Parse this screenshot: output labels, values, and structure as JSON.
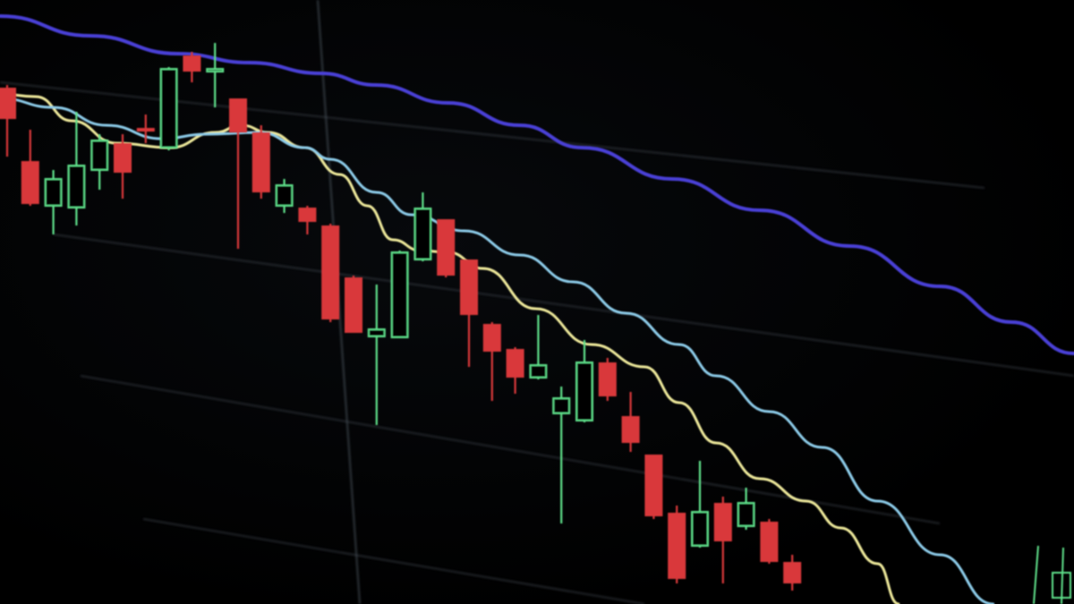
{
  "chart_data": {
    "type": "candlestick",
    "title": "",
    "xlabel": "",
    "ylabel": "",
    "grid": true,
    "legend": "none",
    "colors": {
      "up": "#5fe08a",
      "down": "#d9373a",
      "ma_fast": "#ece79a",
      "ma_mid": "#8ccbe8",
      "ma_slow": "#4a3fd6",
      "grid": "#3a4148",
      "background": "#000000"
    },
    "candles": [
      {
        "o": 60.2,
        "h": 60.5,
        "l": 52.5,
        "c": 56.7
      },
      {
        "o": 52.0,
        "h": 55.5,
        "l": 47.0,
        "c": 47.2
      },
      {
        "o": 47.0,
        "h": 51.0,
        "l": 43.8,
        "c": 50.0
      },
      {
        "o": 46.8,
        "h": 57.5,
        "l": 44.8,
        "c": 51.5
      },
      {
        "o": 51.0,
        "h": 55.0,
        "l": 48.8,
        "c": 54.3
      },
      {
        "o": 54.0,
        "h": 55.0,
        "l": 47.8,
        "c": 50.7
      },
      {
        "o": 55.7,
        "h": 57.2,
        "l": 54.0,
        "c": 55.3
      },
      {
        "o": 53.5,
        "h": 62.5,
        "l": 53.2,
        "c": 62.3
      },
      {
        "o": 63.8,
        "h": 64.2,
        "l": 60.8,
        "c": 62.0
      },
      {
        "o": 62.0,
        "h": 65.2,
        "l": 58.0,
        "c": 62.3
      },
      {
        "o": 59.0,
        "h": 59.0,
        "l": 42.2,
        "c": 55.2
      },
      {
        "o": 55.2,
        "h": 56.0,
        "l": 47.8,
        "c": 48.5
      },
      {
        "o": 47.0,
        "h": 50.0,
        "l": 46.2,
        "c": 49.3
      },
      {
        "o": 46.8,
        "h": 47.0,
        "l": 43.8,
        "c": 45.2
      },
      {
        "o": 44.8,
        "h": 45.0,
        "l": 34.0,
        "c": 34.3
      },
      {
        "o": 39.0,
        "h": 39.2,
        "l": 32.8,
        "c": 32.8
      },
      {
        "o": 32.4,
        "h": 38.2,
        "l": 22.5,
        "c": 33.2
      },
      {
        "o": 32.3,
        "h": 42.0,
        "l": 32.2,
        "c": 41.8
      },
      {
        "o": 41.0,
        "h": 48.5,
        "l": 40.8,
        "c": 46.7
      },
      {
        "o": 45.5,
        "h": 45.5,
        "l": 39.0,
        "c": 39.2
      },
      {
        "o": 41.0,
        "h": 41.0,
        "l": 29.0,
        "c": 34.8
      },
      {
        "o": 33.8,
        "h": 34.0,
        "l": 25.2,
        "c": 30.7
      },
      {
        "o": 31.0,
        "h": 31.2,
        "l": 26.0,
        "c": 27.8
      },
      {
        "o": 27.8,
        "h": 34.8,
        "l": 27.6,
        "c": 29.2
      },
      {
        "o": 23.8,
        "h": 26.8,
        "l": 11.5,
        "c": 25.5
      },
      {
        "o": 23.0,
        "h": 32.0,
        "l": 22.8,
        "c": 29.5
      },
      {
        "o": 29.5,
        "h": 30.0,
        "l": 25.2,
        "c": 25.7
      },
      {
        "o": 23.5,
        "h": 26.2,
        "l": 19.5,
        "c": 20.5
      },
      {
        "o": 19.2,
        "h": 19.2,
        "l": 12.0,
        "c": 12.3
      },
      {
        "o": 12.7,
        "h": 13.5,
        "l": 4.8,
        "c": 5.3
      },
      {
        "o": 9.0,
        "h": 18.5,
        "l": 8.8,
        "c": 12.8
      },
      {
        "o": 13.8,
        "h": 14.5,
        "l": 4.8,
        "c": 9.5
      },
      {
        "o": 11.2,
        "h": 15.5,
        "l": 10.8,
        "c": 13.8
      },
      {
        "o": 11.7,
        "h": 12.0,
        "l": 7.0,
        "c": 7.2
      },
      {
        "o": 7.2,
        "h": 8.0,
        "l": 4.0,
        "c": 4.8
      }
    ],
    "moving_averages": [
      {
        "key": "ma_fast",
        "points": [
          [
            -0.3,
            59.5
          ],
          [
            1.24,
            59.2
          ],
          [
            2.79,
            56.5
          ],
          [
            4.73,
            54
          ],
          [
            7.05,
            53.5
          ],
          [
            9.0,
            55.2
          ],
          [
            10.16,
            56
          ],
          [
            11.3,
            55.2
          ],
          [
            12.9,
            53.5
          ],
          [
            14.4,
            50.5
          ],
          [
            15.6,
            47
          ],
          [
            16.7,
            43.2
          ],
          [
            17.9,
            42
          ],
          [
            19.1,
            41.8
          ],
          [
            20.6,
            40
          ],
          [
            22.9,
            35.5
          ],
          [
            25.3,
            31.5
          ],
          [
            27.6,
            29
          ],
          [
            29.1,
            25
          ],
          [
            30.7,
            20.5
          ],
          [
            32.6,
            16.5
          ],
          [
            34.6,
            14
          ],
          [
            36.1,
            11
          ],
          [
            37.7,
            7
          ],
          [
            38.6,
            2.5
          ]
        ]
      },
      {
        "key": "ma_mid",
        "points": [
          [
            -0.3,
            59
          ],
          [
            2.0,
            58
          ],
          [
            4.3,
            56
          ],
          [
            6.7,
            54.5
          ],
          [
            8.6,
            55
          ],
          [
            10.9,
            55.2
          ],
          [
            12.9,
            53.5
          ],
          [
            14.0,
            52.2
          ],
          [
            16.0,
            48.5
          ],
          [
            17.5,
            46
          ],
          [
            19.8,
            44.2
          ],
          [
            22.2,
            41.5
          ],
          [
            24.5,
            38.5
          ],
          [
            26.8,
            35
          ],
          [
            29.1,
            31.5
          ],
          [
            30.7,
            28
          ],
          [
            33.0,
            24
          ],
          [
            35.3,
            20
          ],
          [
            37.7,
            14
          ],
          [
            40.4,
            8
          ],
          [
            42.7,
            2.5
          ]
        ]
      },
      {
        "key": "ma_slow",
        "points": [
          [
            -0.3,
            68.2
          ],
          [
            3.6,
            66
          ],
          [
            7.4,
            64
          ],
          [
            10.5,
            63
          ],
          [
            13.6,
            61.8
          ],
          [
            15.97,
            60.5
          ],
          [
            19.1,
            58.5
          ],
          [
            22.2,
            56
          ],
          [
            24.9,
            53.5
          ],
          [
            28.8,
            50
          ],
          [
            32.6,
            46.5
          ],
          [
            36.5,
            42.5
          ],
          [
            40.4,
            38
          ],
          [
            43.5,
            34
          ],
          [
            46.2,
            30.5
          ]
        ]
      }
    ]
  }
}
